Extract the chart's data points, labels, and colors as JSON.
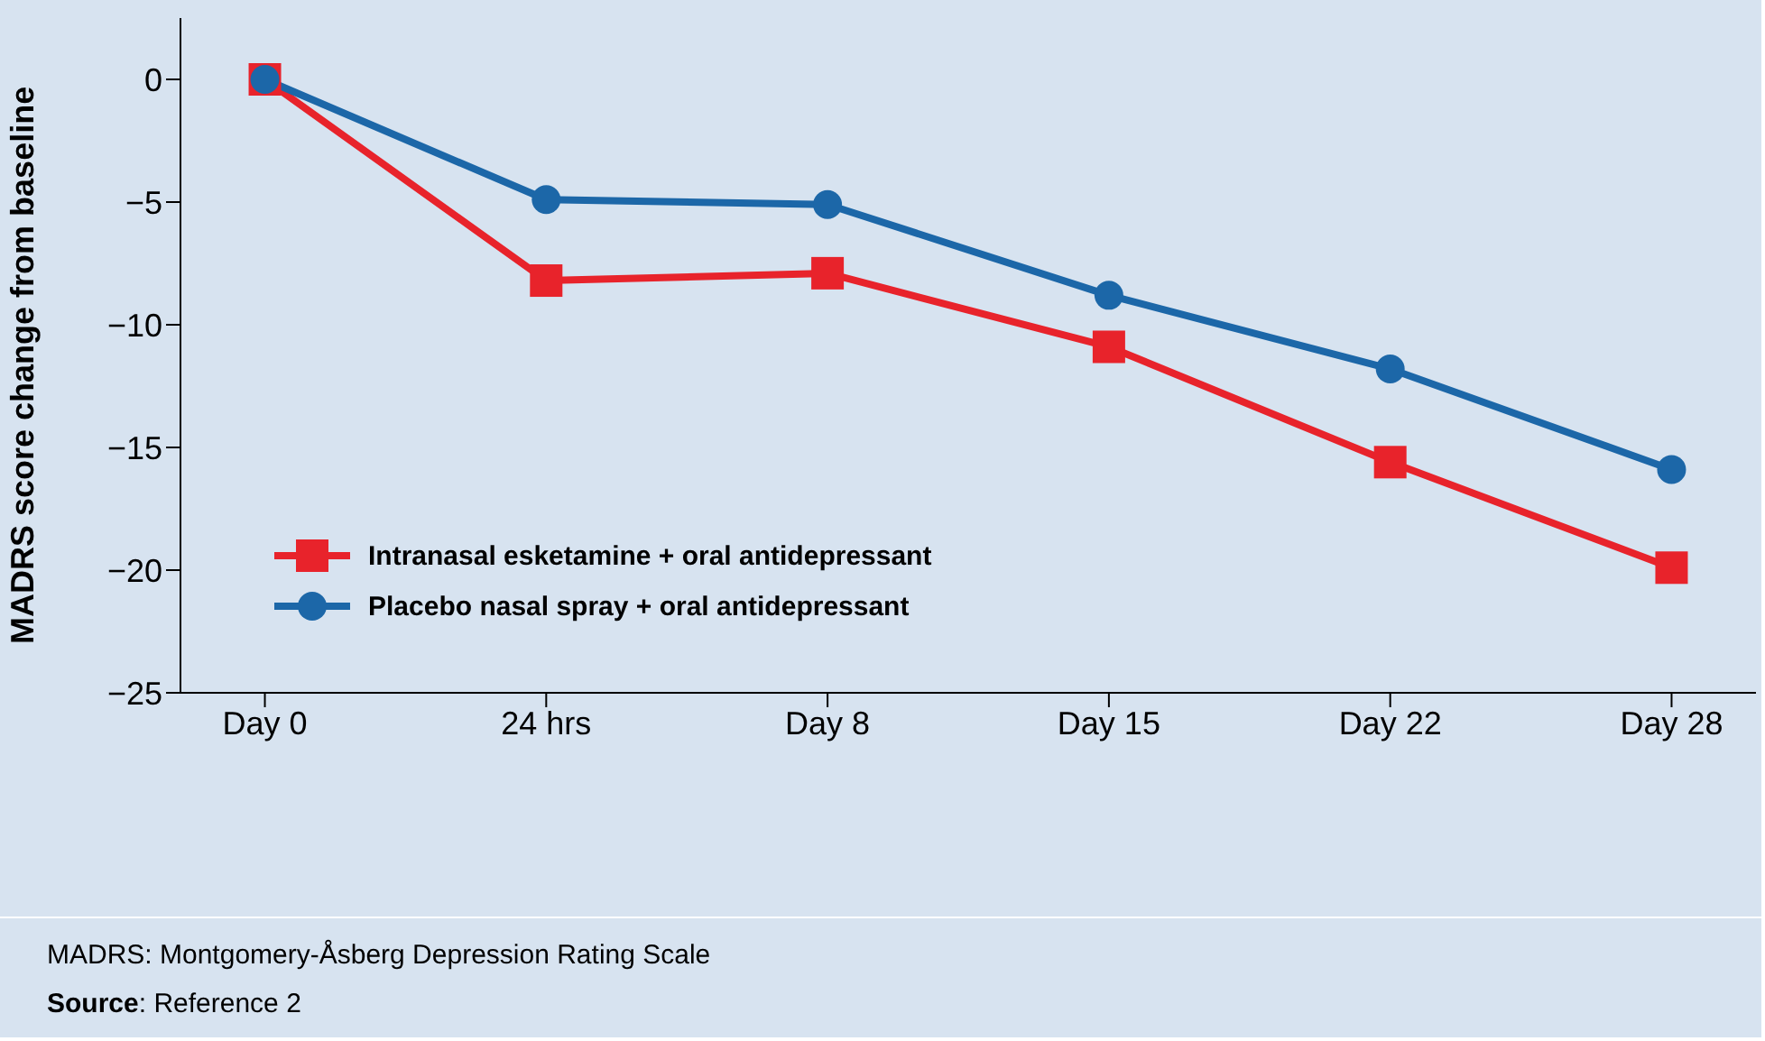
{
  "chart_data": {
    "type": "line",
    "ylabel": "MADRS score change from baseline",
    "categories": [
      "Day 0",
      "24 hrs",
      "Day 8",
      "Day 15",
      "Day 22",
      "Day 28"
    ],
    "ylim": [
      -25,
      2.5
    ],
    "yticks": [
      0,
      -5,
      -10,
      -15,
      -20,
      -25
    ],
    "series": [
      {
        "name": "Intranasal esketamine + oral antidepressant",
        "color": "#e8232b",
        "marker": "square",
        "values": [
          0,
          -8.2,
          -7.9,
          -10.9,
          -15.6,
          -19.9
        ]
      },
      {
        "name": "Placebo nasal spray + oral antidepressant",
        "color": "#1c67a8",
        "marker": "circle",
        "values": [
          0,
          -4.9,
          -5.1,
          -8.8,
          -11.8,
          -15.9
        ]
      }
    ],
    "legend": "bottom left",
    "grid": false,
    "line_style": "solid",
    "annotations": [
      "MADRS: Montgomery-Åsberg Depression Rating Scale",
      "Source: Reference 2"
    ]
  }
}
